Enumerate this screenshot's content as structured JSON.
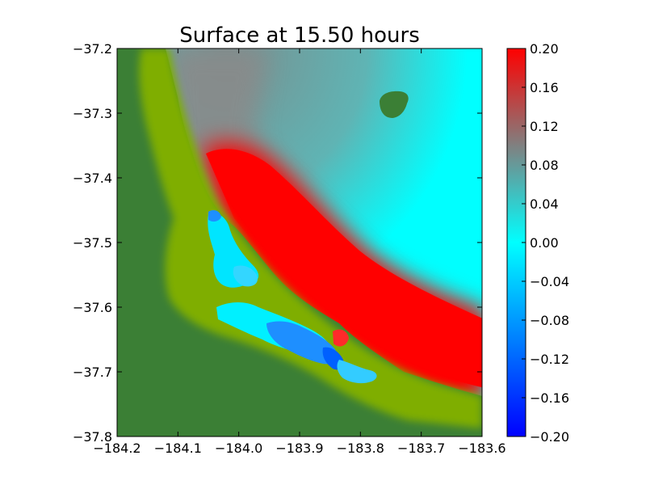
{
  "chart_data": {
    "type": "heatmap",
    "title": "Surface at 15.50 hours",
    "xlabel": "",
    "ylabel": "",
    "xlim": [
      -184.2,
      -183.6
    ],
    "ylim": [
      -37.8,
      -37.2
    ],
    "x_ticks": [
      "−184.2",
      "−184.1",
      "−184.0",
      "−183.9",
      "−183.8",
      "−183.7",
      "−183.6"
    ],
    "y_ticks": [
      "−37.2",
      "−37.3",
      "−37.4",
      "−37.5",
      "−37.6",
      "−37.7",
      "−37.8"
    ],
    "colorbar": {
      "range": [
        -0.2,
        0.2
      ],
      "ticks": [
        "0.20",
        "0.16",
        "0.12",
        "0.08",
        "0.04",
        "0.00",
        "−0.04",
        "−0.08",
        "−0.12",
        "−0.16",
        "−0.20"
      ],
      "colors": [
        "#0000ff",
        "#00ffff",
        "#808080",
        "#ff0000"
      ]
    },
    "land_colors": [
      "#3b7f35",
      "#7fae00"
    ]
  }
}
